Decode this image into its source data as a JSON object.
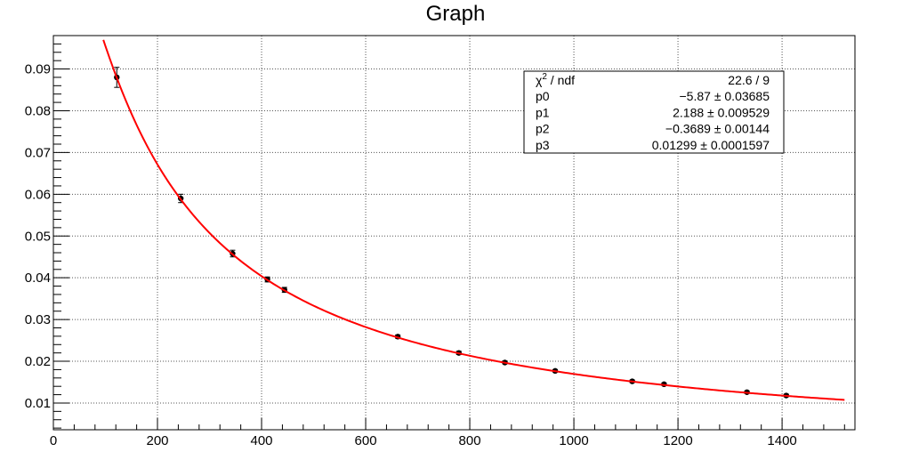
{
  "chart_data": {
    "type": "scatter",
    "title": "Graph",
    "xlabel": "",
    "ylabel": "",
    "xlim": [
      0,
      1540
    ],
    "ylim": [
      0.0036,
      0.098
    ],
    "x_ticks": [
      0,
      200,
      400,
      600,
      800,
      1000,
      1200,
      1400
    ],
    "x_tick_labels": [
      "0",
      "200",
      "400",
      "600",
      "800",
      "1000",
      "1200",
      "1400"
    ],
    "y_ticks": [
      0.01,
      0.02,
      0.03,
      0.04,
      0.05,
      0.06,
      0.07,
      0.08,
      0.09
    ],
    "y_tick_labels": [
      "0.01",
      "0.02",
      "0.03",
      "0.04",
      "0.05",
      "0.06",
      "0.07",
      "0.08",
      "0.09"
    ],
    "grid": true,
    "points": [
      {
        "x": 121.8,
        "y": 0.088,
        "err": 0.0024
      },
      {
        "x": 244.7,
        "y": 0.059,
        "err": 0.001
      },
      {
        "x": 344.3,
        "y": 0.0458,
        "err": 0.0008
      },
      {
        "x": 411.1,
        "y": 0.0396,
        "err": 0.0006
      },
      {
        "x": 444.0,
        "y": 0.0371,
        "err": 0.0006
      },
      {
        "x": 661.7,
        "y": 0.0259,
        "err": 0.0004
      },
      {
        "x": 779.0,
        "y": 0.022,
        "err": 0.0004
      },
      {
        "x": 867.4,
        "y": 0.0197,
        "err": 0.0003
      },
      {
        "x": 964.1,
        "y": 0.0177,
        "err": 0.0003
      },
      {
        "x": 1112.1,
        "y": 0.0152,
        "err": 0.0003
      },
      {
        "x": 1173.2,
        "y": 0.0145,
        "err": 0.0003
      },
      {
        "x": 1332.5,
        "y": 0.0126,
        "err": 0.0003
      },
      {
        "x": 1408.0,
        "y": 0.0118,
        "err": 0.0003
      }
    ],
    "fit": {
      "name": "pol3 in ln(x) of ln(y)",
      "params": [
        -5.87,
        2.188,
        -0.3689,
        0.01299
      ],
      "x_range": [
        80,
        1520
      ],
      "color": "#ff0000"
    },
    "stats_box": {
      "rows": [
        {
          "label_main": "χ",
          "label_sup": "2",
          "label_rest": " / ndf",
          "value": "22.6 / 9"
        },
        {
          "label_main": "p0",
          "value": "−5.87 ± 0.03685"
        },
        {
          "label_main": "p1",
          "value": "2.188 ± 0.009529"
        },
        {
          "label_main": "p2",
          "value": "−0.3689 ± 0.00144"
        },
        {
          "label_main": "p3",
          "value": "0.01299 ± 0.0001597"
        }
      ]
    }
  }
}
